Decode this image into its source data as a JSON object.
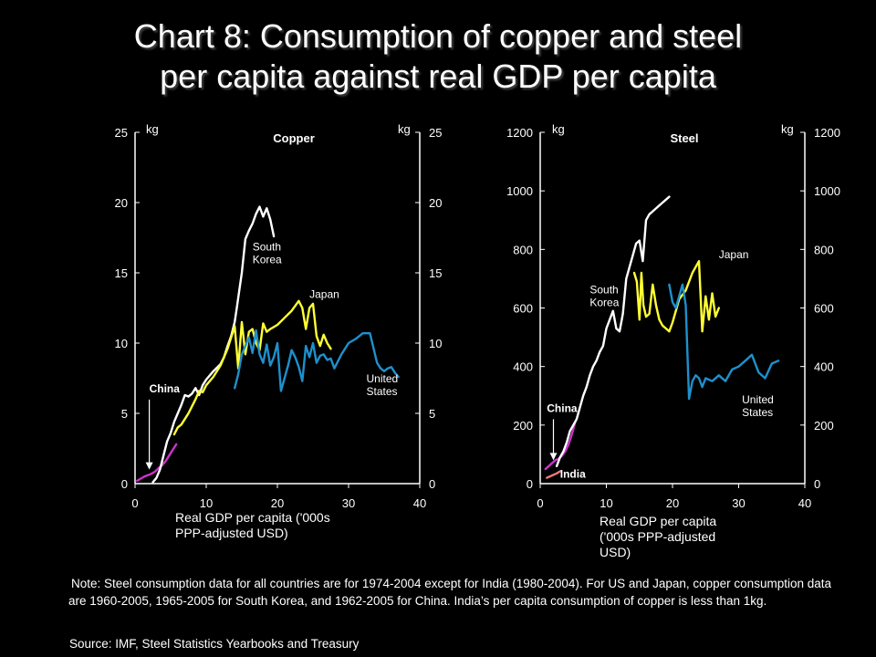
{
  "title": {
    "line1": "Chart 8: Consumption of copper and steel",
    "line2": "per capita against real GDP per capita"
  },
  "colors": {
    "background": "#000000",
    "china": "#cc33cc",
    "south_korea": "#ffffff",
    "japan": "#ffff33",
    "united_states": "#1e90cc",
    "india": "#e87878"
  },
  "chart_data": [
    {
      "type": "line",
      "title": "Copper",
      "xlabel": "Real GDP per capita ('000s  PPP-adjusted USD)",
      "ylabel_left": "kg",
      "ylabel_right": "kg",
      "xlim": [
        0,
        40
      ],
      "ylim": [
        0,
        25
      ],
      "x_ticks": [
        0,
        10,
        20,
        30,
        40
      ],
      "y_ticks": [
        0,
        5,
        10,
        15,
        20,
        25
      ],
      "grid": false,
      "annotations": [
        {
          "text": "China",
          "x": 2,
          "y": 6.5,
          "arrow_to": [
            2,
            1.0
          ],
          "bold": true
        },
        {
          "text": "South\nKorea",
          "x": 16.5,
          "y": 16.6
        },
        {
          "text": "Japan",
          "x": 24.5,
          "y": 13.2
        },
        {
          "text": "United\nStates",
          "x": 32.5,
          "y": 7.2
        }
      ],
      "series": [
        {
          "name": "China",
          "color_key": "china",
          "x": [
            0.3,
            0.8,
            1.3,
            1.8,
            2.3,
            2.8,
            3.3,
            3.8,
            4.3,
            4.8,
            5.3,
            5.8
          ],
          "y": [
            0.2,
            0.35,
            0.5,
            0.6,
            0.7,
            0.85,
            1.1,
            1.3,
            1.6,
            2.0,
            2.4,
            2.8
          ]
        },
        {
          "name": "South Korea",
          "color_key": "south_korea",
          "x": [
            2.5,
            3.0,
            3.5,
            4.0,
            4.5,
            5.0,
            5.5,
            6.0,
            6.5,
            7.0,
            7.5,
            8.0,
            8.5,
            9.0,
            9.5,
            10.0,
            11.0,
            12.0,
            12.5,
            13.0,
            13.5,
            14.0,
            14.3,
            14.6,
            15.0,
            15.5,
            16.0,
            16.5,
            17.0,
            17.5,
            18.0,
            18.5,
            19.0,
            19.5
          ],
          "y": [
            0.1,
            0.4,
            1.0,
            2.0,
            3.0,
            3.6,
            4.4,
            5.0,
            5.6,
            6.3,
            6.2,
            6.4,
            6.8,
            6.3,
            7.0,
            7.4,
            8.0,
            8.5,
            9.0,
            9.8,
            10.5,
            11.5,
            12.5,
            13.6,
            15.0,
            17.4,
            18.0,
            18.5,
            19.2,
            19.7,
            19.0,
            19.6,
            18.8,
            17.6
          ]
        },
        {
          "name": "Japan",
          "color_key": "japan",
          "x": [
            5.5,
            6.0,
            6.5,
            7.0,
            7.5,
            8.0,
            8.5,
            9.0,
            9.5,
            10.0,
            11.0,
            12.0,
            13.0,
            14.0,
            14.5,
            15.0,
            15.5,
            16.0,
            16.5,
            17.0,
            17.5,
            18.0,
            18.5,
            19.0,
            20.0,
            21.0,
            22.0,
            23.0,
            23.5,
            24.0,
            24.5,
            25.0,
            25.5,
            26.0,
            26.5,
            27.0,
            27.5
          ],
          "y": [
            3.5,
            4.0,
            4.2,
            4.6,
            5.0,
            5.5,
            6.0,
            6.6,
            6.5,
            7.0,
            7.6,
            8.4,
            9.6,
            11.2,
            8.2,
            11.5,
            9.2,
            10.8,
            11.0,
            10.0,
            9.5,
            11.4,
            10.8,
            11.0,
            11.3,
            11.8,
            12.3,
            13.0,
            12.5,
            11.0,
            12.5,
            12.8,
            10.5,
            9.8,
            10.6,
            10.0,
            9.6
          ]
        },
        {
          "name": "United States",
          "color_key": "united_states",
          "x": [
            14.0,
            14.5,
            15.0,
            15.5,
            16.0,
            16.5,
            17.0,
            17.5,
            18.0,
            18.5,
            19.0,
            19.5,
            20.0,
            20.5,
            21.0,
            21.5,
            22.0,
            22.5,
            23.0,
            23.5,
            24.0,
            24.5,
            25.0,
            25.5,
            26.0,
            26.5,
            27.0,
            27.5,
            28.0,
            29.0,
            30.0,
            31.0,
            32.0,
            33.0,
            34.0,
            34.5,
            35.0,
            35.5,
            36.0,
            36.5,
            37.0
          ],
          "y": [
            6.8,
            7.8,
            9.2,
            9.8,
            10.4,
            9.3,
            10.9,
            9.2,
            8.6,
            9.9,
            8.4,
            9.0,
            10.0,
            6.6,
            7.5,
            8.4,
            9.5,
            9.0,
            8.3,
            7.3,
            9.8,
            9.0,
            10.0,
            8.6,
            9.1,
            9.2,
            8.8,
            8.9,
            8.2,
            9.2,
            10.0,
            10.3,
            10.7,
            10.7,
            8.6,
            8.2,
            8.0,
            8.2,
            8.3,
            7.9,
            7.6
          ]
        }
      ]
    },
    {
      "type": "line",
      "title": "Steel",
      "xlabel": "Real GDP per capita ('000s PPP-adjusted USD)",
      "ylabel_left": "kg",
      "ylabel_right": "kg",
      "xlim": [
        0,
        40
      ],
      "ylim": [
        0,
        1200
      ],
      "x_ticks": [
        0,
        10,
        20,
        30,
        40
      ],
      "y_ticks": [
        0,
        200,
        400,
        600,
        800,
        1000,
        1200
      ],
      "grid": false,
      "annotations": [
        {
          "text": "China",
          "x": 1,
          "y": 245,
          "arrow_to": [
            2,
            80
          ],
          "bold": true
        },
        {
          "text": "India",
          "x": 3,
          "y": 20,
          "bold": true
        },
        {
          "text": "South\nKorea",
          "x": 7.5,
          "y": 650
        },
        {
          "text": "Japan",
          "x": 27,
          "y": 770
        },
        {
          "text": "United\nStates",
          "x": 30.5,
          "y": 275
        }
      ],
      "series": [
        {
          "name": "China",
          "color_key": "china",
          "x": [
            0.8,
            1.3,
            1.8,
            2.3,
            2.8,
            3.3,
            3.8,
            4.3,
            4.8,
            5.3
          ],
          "y": [
            50,
            60,
            70,
            80,
            85,
            95,
            110,
            135,
            170,
            210
          ]
        },
        {
          "name": "India",
          "color_key": "india",
          "x": [
            1.0,
            1.5,
            2.0,
            2.5,
            3.0
          ],
          "y": [
            20,
            25,
            30,
            35,
            42
          ]
        },
        {
          "name": "South Korea",
          "color_key": "south_korea",
          "x": [
            2.5,
            3.0,
            3.5,
            4.0,
            4.5,
            5.0,
            5.5,
            6.0,
            6.5,
            7.0,
            7.5,
            8.0,
            8.5,
            9.0,
            9.5,
            10.0,
            11.0,
            11.5,
            12.0,
            12.5,
            13.0,
            13.5,
            14.0,
            14.5,
            15.0,
            15.5,
            16.0,
            16.5,
            17.0,
            17.5,
            18.0,
            18.5,
            19.0,
            19.5
          ],
          "y": [
            60,
            90,
            110,
            140,
            180,
            200,
            220,
            260,
            300,
            330,
            370,
            400,
            420,
            450,
            470,
            530,
            590,
            530,
            520,
            580,
            700,
            740,
            780,
            820,
            830,
            760,
            900,
            920,
            930,
            940,
            950,
            960,
            970,
            980
          ]
        },
        {
          "name": "Japan",
          "color_key": "japan",
          "x": [
            14.2,
            14.6,
            15.0,
            15.3,
            15.6,
            16.0,
            16.5,
            17.0,
            17.5,
            18.0,
            18.5,
            19.0,
            19.5,
            20.0,
            21.0,
            22.0,
            23.0,
            24.0,
            24.5,
            25.0,
            25.5,
            26.0,
            26.5,
            27.0
          ],
          "y": [
            720,
            690,
            560,
            720,
            610,
            570,
            580,
            680,
            610,
            560,
            540,
            530,
            520,
            550,
            630,
            660,
            720,
            760,
            520,
            640,
            560,
            650,
            570,
            600
          ]
        },
        {
          "name": "United States",
          "color_key": "united_states",
          "x": [
            19.5,
            20.0,
            20.5,
            21.0,
            21.5,
            22.0,
            22.5,
            23.0,
            23.5,
            24.0,
            24.5,
            25.0,
            26.0,
            27.0,
            28.0,
            29.0,
            30.0,
            31.0,
            32.0,
            33.0,
            34.0,
            35.0,
            36.0
          ],
          "y": [
            680,
            620,
            600,
            640,
            680,
            610,
            290,
            350,
            370,
            360,
            330,
            360,
            350,
            370,
            350,
            390,
            400,
            420,
            440,
            380,
            360,
            410,
            420
          ]
        }
      ]
    }
  ],
  "note": "Note: Steel consumption data for all countries are for 1974-2004 except for India (1980-2004). For US and Japan, copper consumption data are 1960-2005, 1965-2005 for South Korea, and 1962-2005 for China. India’s per capita consumption of copper is less than 1kg.",
  "source": "Source: IMF, Steel Statistics Yearbooks and Treasury"
}
